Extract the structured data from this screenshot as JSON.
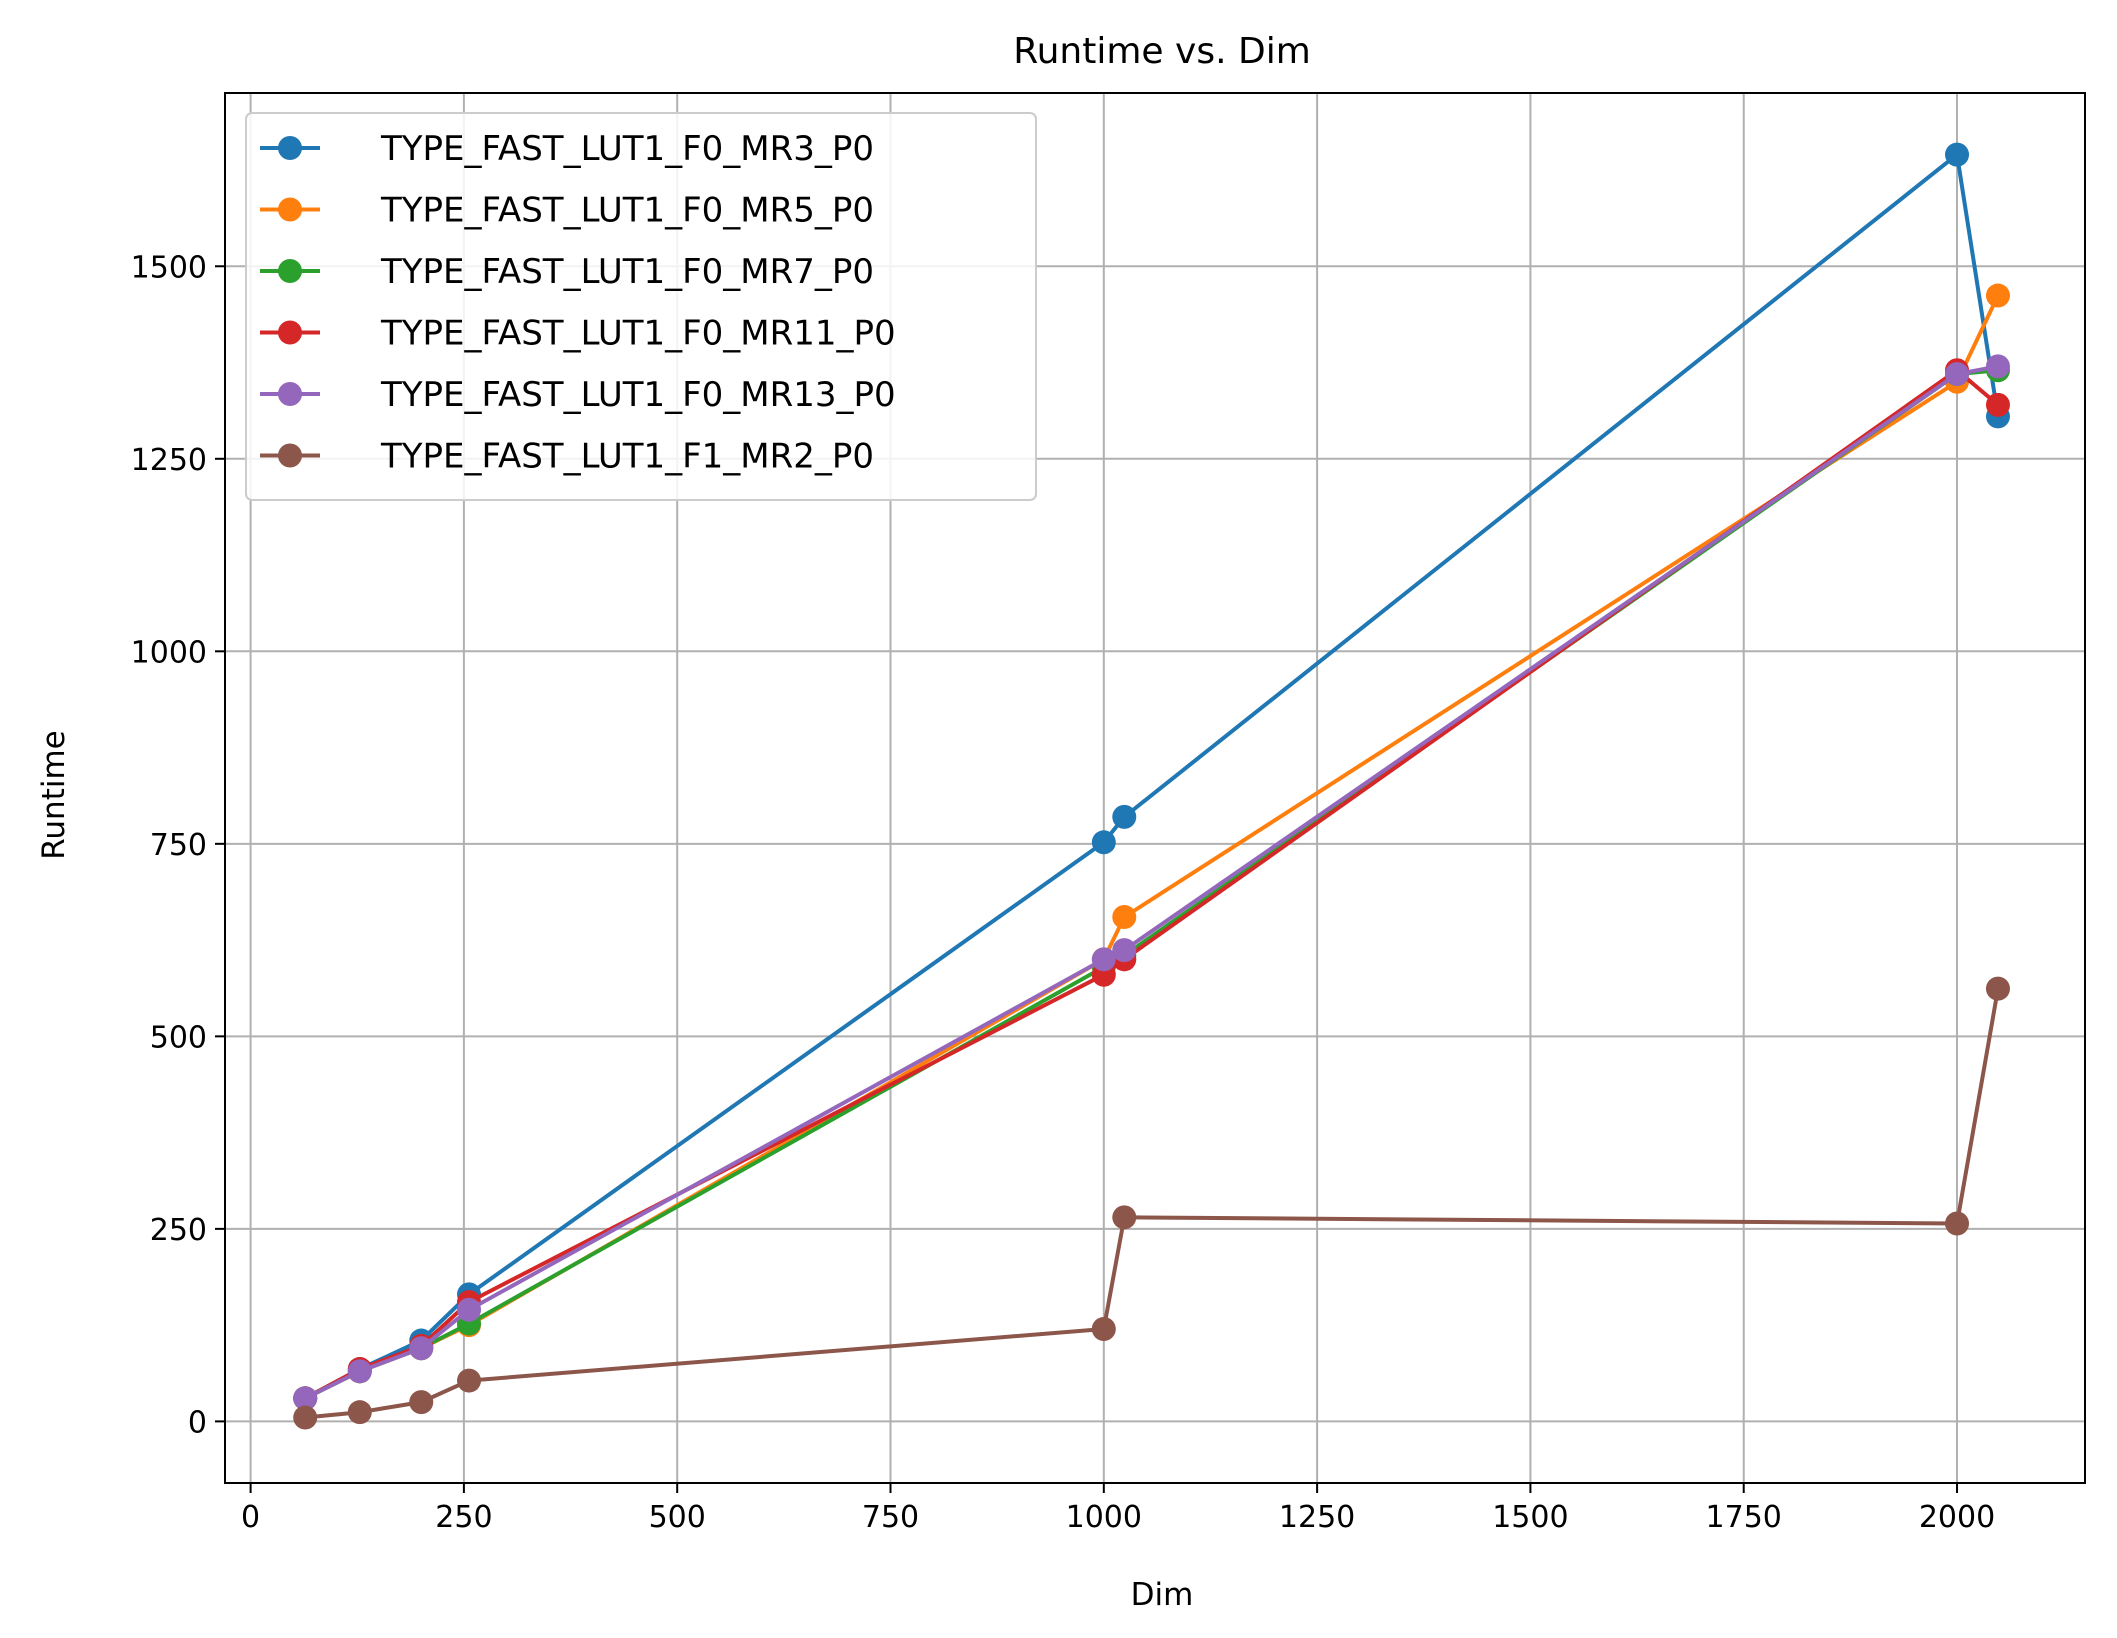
{
  "chart_data": {
    "type": "line",
    "title": "Runtime vs. Dim",
    "xlabel": "Dim",
    "ylabel": "Runtime",
    "xlim": [
      -30,
      2150
    ],
    "ylim": [
      -80,
      1725
    ],
    "xticks": [
      0,
      250,
      500,
      750,
      1000,
      1250,
      1500,
      1750,
      2000
    ],
    "yticks": [
      0,
      250,
      500,
      750,
      1000,
      1250,
      1500
    ],
    "grid": true,
    "legend_position": "upper-left",
    "x": [
      64,
      128,
      200,
      256,
      1000,
      1024,
      2000,
      2048
    ],
    "series": [
      {
        "name": "TYPE_FAST_LUT1_F0_MR3_P0",
        "color": "#1f77b4",
        "values": [
          30,
          68,
          105,
          165,
          752,
          785,
          1645,
          1305
        ]
      },
      {
        "name": "TYPE_FAST_LUT1_F0_MR5_P0",
        "color": "#ff7f0e",
        "values": [
          30,
          65,
          95,
          125,
          600,
          655,
          1350,
          1462
        ]
      },
      {
        "name": "TYPE_FAST_LUT1_F0_MR7_P0",
        "color": "#2ca02c",
        "values": [
          30,
          65,
          95,
          127,
          590,
          605,
          1360,
          1365
        ]
      },
      {
        "name": "TYPE_FAST_LUT1_F0_MR11_P0",
        "color": "#d62728",
        "values": [
          30,
          68,
          98,
          155,
          580,
          600,
          1365,
          1320
        ]
      },
      {
        "name": "TYPE_FAST_LUT1_F0_MR13_P0",
        "color": "#9467bd",
        "values": [
          30,
          65,
          95,
          145,
          600,
          612,
          1360,
          1370
        ]
      },
      {
        "name": "TYPE_FAST_LUT1_F1_MR2_P0",
        "color": "#8c564b",
        "values": [
          5,
          12,
          25,
          53,
          120,
          265,
          257,
          562
        ]
      }
    ]
  }
}
